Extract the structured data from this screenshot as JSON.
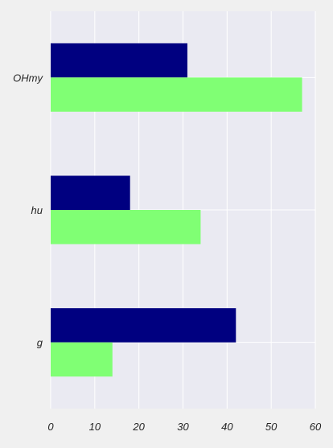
{
  "chart_data": {
    "type": "bar",
    "orientation": "horizontal",
    "categories": [
      "OHmy",
      "hu",
      "g"
    ],
    "series": [
      {
        "values": [
          31,
          18,
          42
        ],
        "color": "#000080"
      },
      {
        "values": [
          57,
          34,
          14
        ],
        "color": "#80ff74"
      }
    ],
    "xlim": [
      0,
      60
    ],
    "xticks": [
      0,
      10,
      20,
      30,
      40,
      50,
      60
    ],
    "title": "",
    "xlabel": "",
    "ylabel": "",
    "grid": true,
    "background": "#eaeaf2",
    "page_background": "#f0f0f0"
  }
}
